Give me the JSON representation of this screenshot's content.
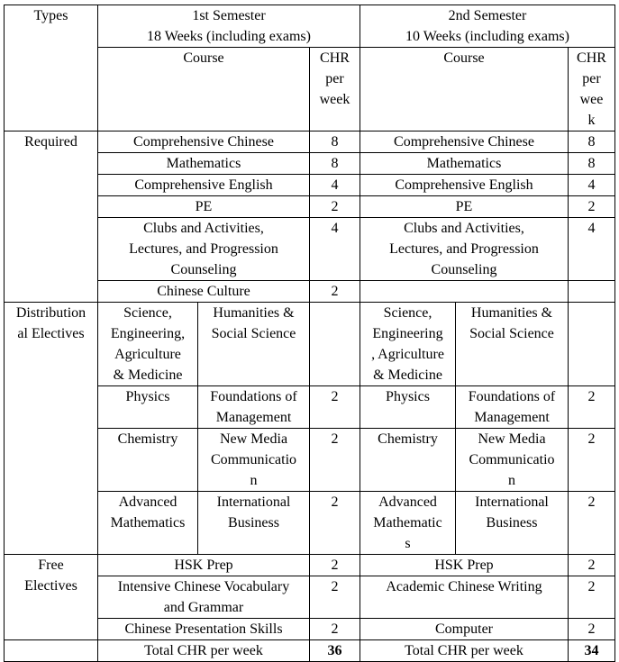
{
  "header": {
    "types": "Types",
    "sem1": "1st Semester\n18 Weeks (including exams)",
    "sem2": "2nd Semester\n10 Weeks (including exams)",
    "course": "Course",
    "chr1": "CHR\nper\nweek",
    "chr2": "CHR\nper\nwee\nk"
  },
  "required": {
    "label": "Required",
    "rows": [
      {
        "c1": "Comprehensive Chinese",
        "h1": "8",
        "c2": "Comprehensive Chinese",
        "h2": "8"
      },
      {
        "c1": "Mathematics",
        "h1": "8",
        "c2": "Mathematics",
        "h2": "8"
      },
      {
        "c1": "Comprehensive English",
        "h1": "4",
        "c2": "Comprehensive English",
        "h2": "4"
      },
      {
        "c1": "PE",
        "h1": "2",
        "c2": "PE",
        "h2": "2"
      },
      {
        "c1": "Clubs and Activities,\nLectures,   and Progression\nCounseling",
        "h1": "4",
        "c2": "Clubs and Activities,\nLectures,   and Progression\nCounseling",
        "h2": "4"
      },
      {
        "c1": "Chinese Culture",
        "h1": "2",
        "c2": "",
        "h2": ""
      }
    ]
  },
  "distributional": {
    "label": "Distribution\nal Electives",
    "header": {
      "a1": "Science,\nEngineering,\nAgriculture\n& Medicine",
      "b1": "Humanities &\nSocial Science",
      "a2": "Science,\nEngineering\n, Agriculture\n& Medicine",
      "b2": "Humanities &\nSocial Science"
    },
    "rows": [
      {
        "a1": "Physics",
        "b1": "Foundations of\nManagement",
        "h1": "2",
        "a2": "Physics",
        "b2": "Foundations of\nManagement",
        "h2": "2"
      },
      {
        "a1": "Chemistry",
        "b1": "New Media\nCommunicatio\nn",
        "h1": "2",
        "a2": "Chemistry",
        "b2": "New Media\nCommunicatio\nn",
        "h2": "2"
      },
      {
        "a1": "Advanced\nMathematics",
        "b1": "International\nBusiness",
        "h1": "2",
        "a2": "Advanced\nMathematic\ns",
        "b2": "International\nBusiness",
        "h2": "2"
      }
    ]
  },
  "free": {
    "label": "Free\nElectives",
    "rows": [
      {
        "c1": "HSK Prep",
        "h1": "2",
        "c2": "HSK  Prep",
        "h2": "2"
      },
      {
        "c1": "Intensive Chinese Vocabulary\nand Grammar",
        "h1": "2",
        "c2": "Academic Chinese Writing",
        "h2": "2"
      },
      {
        "c1": "Chinese Presentation Skills",
        "h1": "2",
        "c2": "Computer",
        "h2": "2"
      }
    ]
  },
  "total": {
    "label1": "Total CHR per week",
    "value1": "36",
    "label2": "Total CHR per week",
    "value2": "34"
  }
}
